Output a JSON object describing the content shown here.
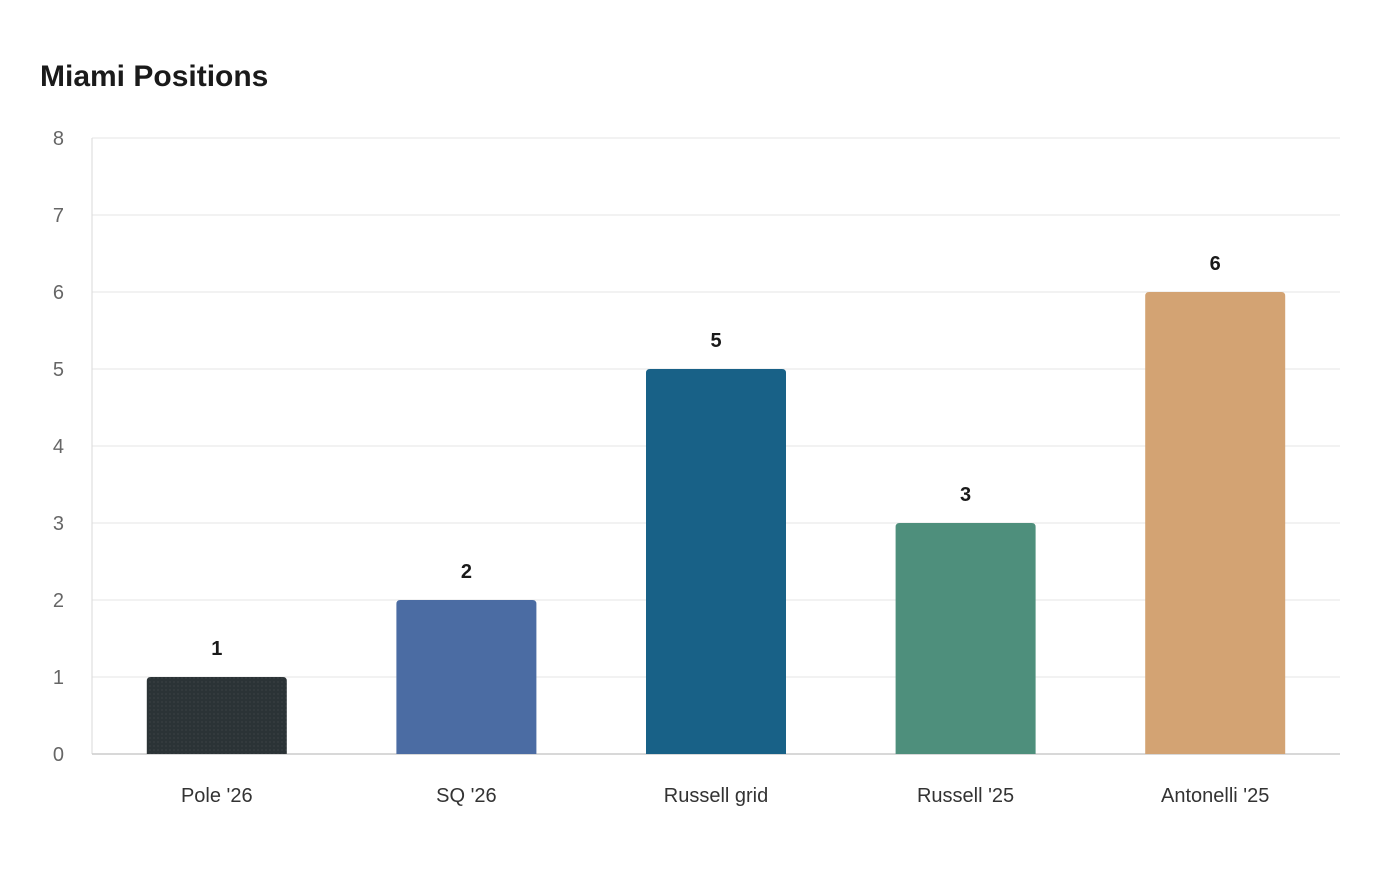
{
  "chart_data": {
    "type": "bar",
    "title": "Miami Positions",
    "xlabel": "",
    "ylabel": "",
    "categories": [
      "Pole '26",
      "SQ '26",
      "Russell grid",
      "Russell '25",
      "Antonelli '25"
    ],
    "values": [
      1,
      2,
      5,
      3,
      6
    ],
    "colors": [
      "#2b3336",
      "#4b6ca3",
      "#186187",
      "#4e8f7c",
      "#d3a373"
    ],
    "ylim": [
      0,
      8
    ],
    "yticks": [
      0,
      1,
      2,
      3,
      4,
      5,
      6,
      7,
      8
    ],
    "grid": true,
    "legend": "none",
    "data_labels": true
  }
}
